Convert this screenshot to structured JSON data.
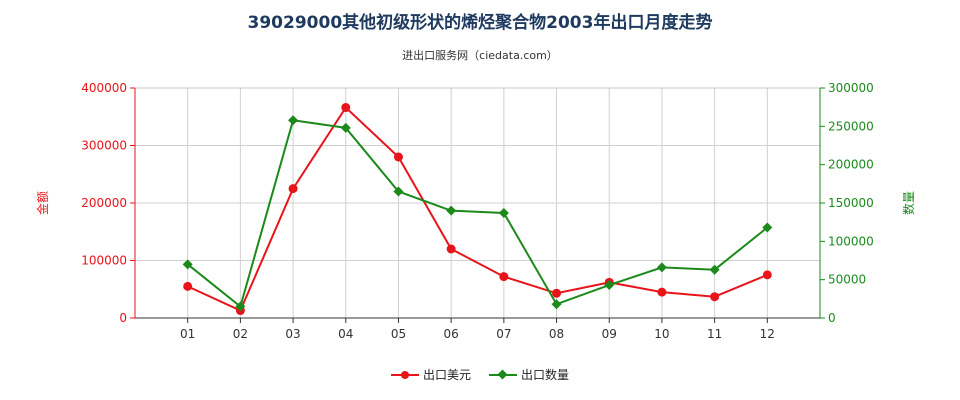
{
  "chart_data": {
    "type": "line",
    "title": "39029000其他初级形状的烯烃聚合物2003年出口月度走势",
    "subtitle": "进出口服务网（ciedata.com）",
    "categories": [
      "01",
      "02",
      "03",
      "04",
      "05",
      "06",
      "07",
      "08",
      "09",
      "10",
      "11",
      "12"
    ],
    "left_axis": {
      "label": "金额",
      "ylim": [
        0,
        400000
      ],
      "ticks": [
        "0",
        "100000",
        "200000",
        "300000",
        "400000"
      ],
      "tick_values": [
        0,
        100000,
        200000,
        300000,
        400000
      ],
      "color": "#e8141a"
    },
    "right_axis": {
      "label": "数量",
      "ylim": [
        0,
        300000
      ],
      "ticks": [
        "0",
        "50000",
        "100000",
        "150000",
        "200000",
        "250000",
        "300000"
      ],
      "tick_values": [
        0,
        50000,
        100000,
        150000,
        200000,
        250000,
        300000
      ],
      "color": "#1b8a1b"
    },
    "series": [
      {
        "name": "出口美元",
        "axis": "left",
        "color": "#e8141a",
        "marker": "circle",
        "values": [
          55000,
          13000,
          225000,
          366000,
          280000,
          120000,
          72000,
          43000,
          62000,
          45000,
          37000,
          75000
        ]
      },
      {
        "name": "出口数量",
        "axis": "right",
        "color": "#1b8a1b",
        "marker": "diamond",
        "values": [
          70000,
          15000,
          258000,
          248000,
          165000,
          140000,
          137000,
          18000,
          43000,
          66000,
          63000,
          118000
        ]
      }
    ],
    "grid": true,
    "legend_position": "bottom-center"
  }
}
